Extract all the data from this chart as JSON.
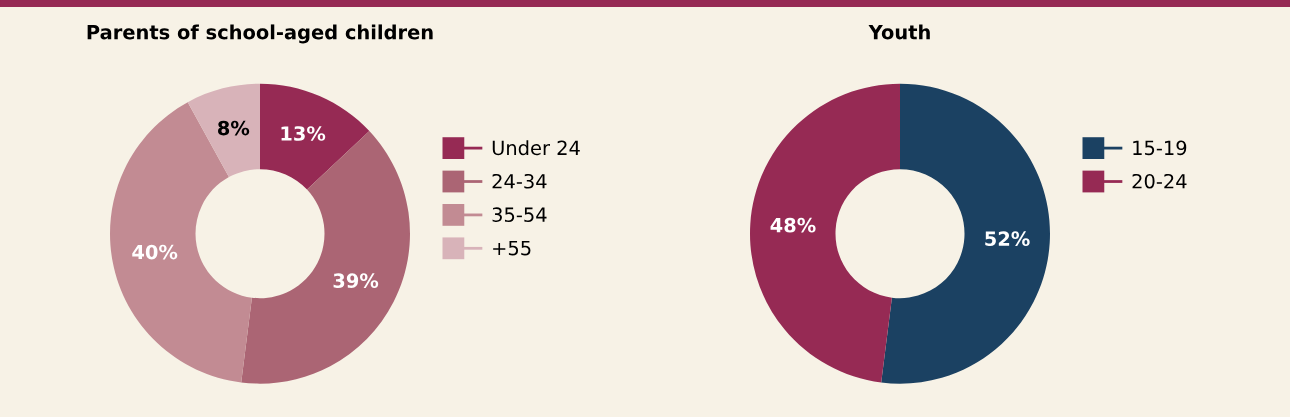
{
  "chart_data": [
    {
      "type": "donut",
      "title": "Parents of school-aged children",
      "categories": [
        "Under 24",
        "24-34",
        "35-54",
        "+55"
      ],
      "values": [
        13,
        39,
        40,
        8
      ],
      "colors": [
        "#962a54",
        "#ab6574",
        "#c28b93",
        "#d8b3b9"
      ],
      "value_labels": [
        "13%",
        "39%",
        "40%",
        "8%"
      ],
      "legend": "right"
    },
    {
      "type": "donut",
      "title": "Youth",
      "categories": [
        "15-19",
        "20-24"
      ],
      "values": [
        52,
        48
      ],
      "colors": [
        "#1b4162",
        "#962a54"
      ],
      "value_labels": [
        "52%",
        "48%"
      ],
      "legend": "right"
    }
  ]
}
